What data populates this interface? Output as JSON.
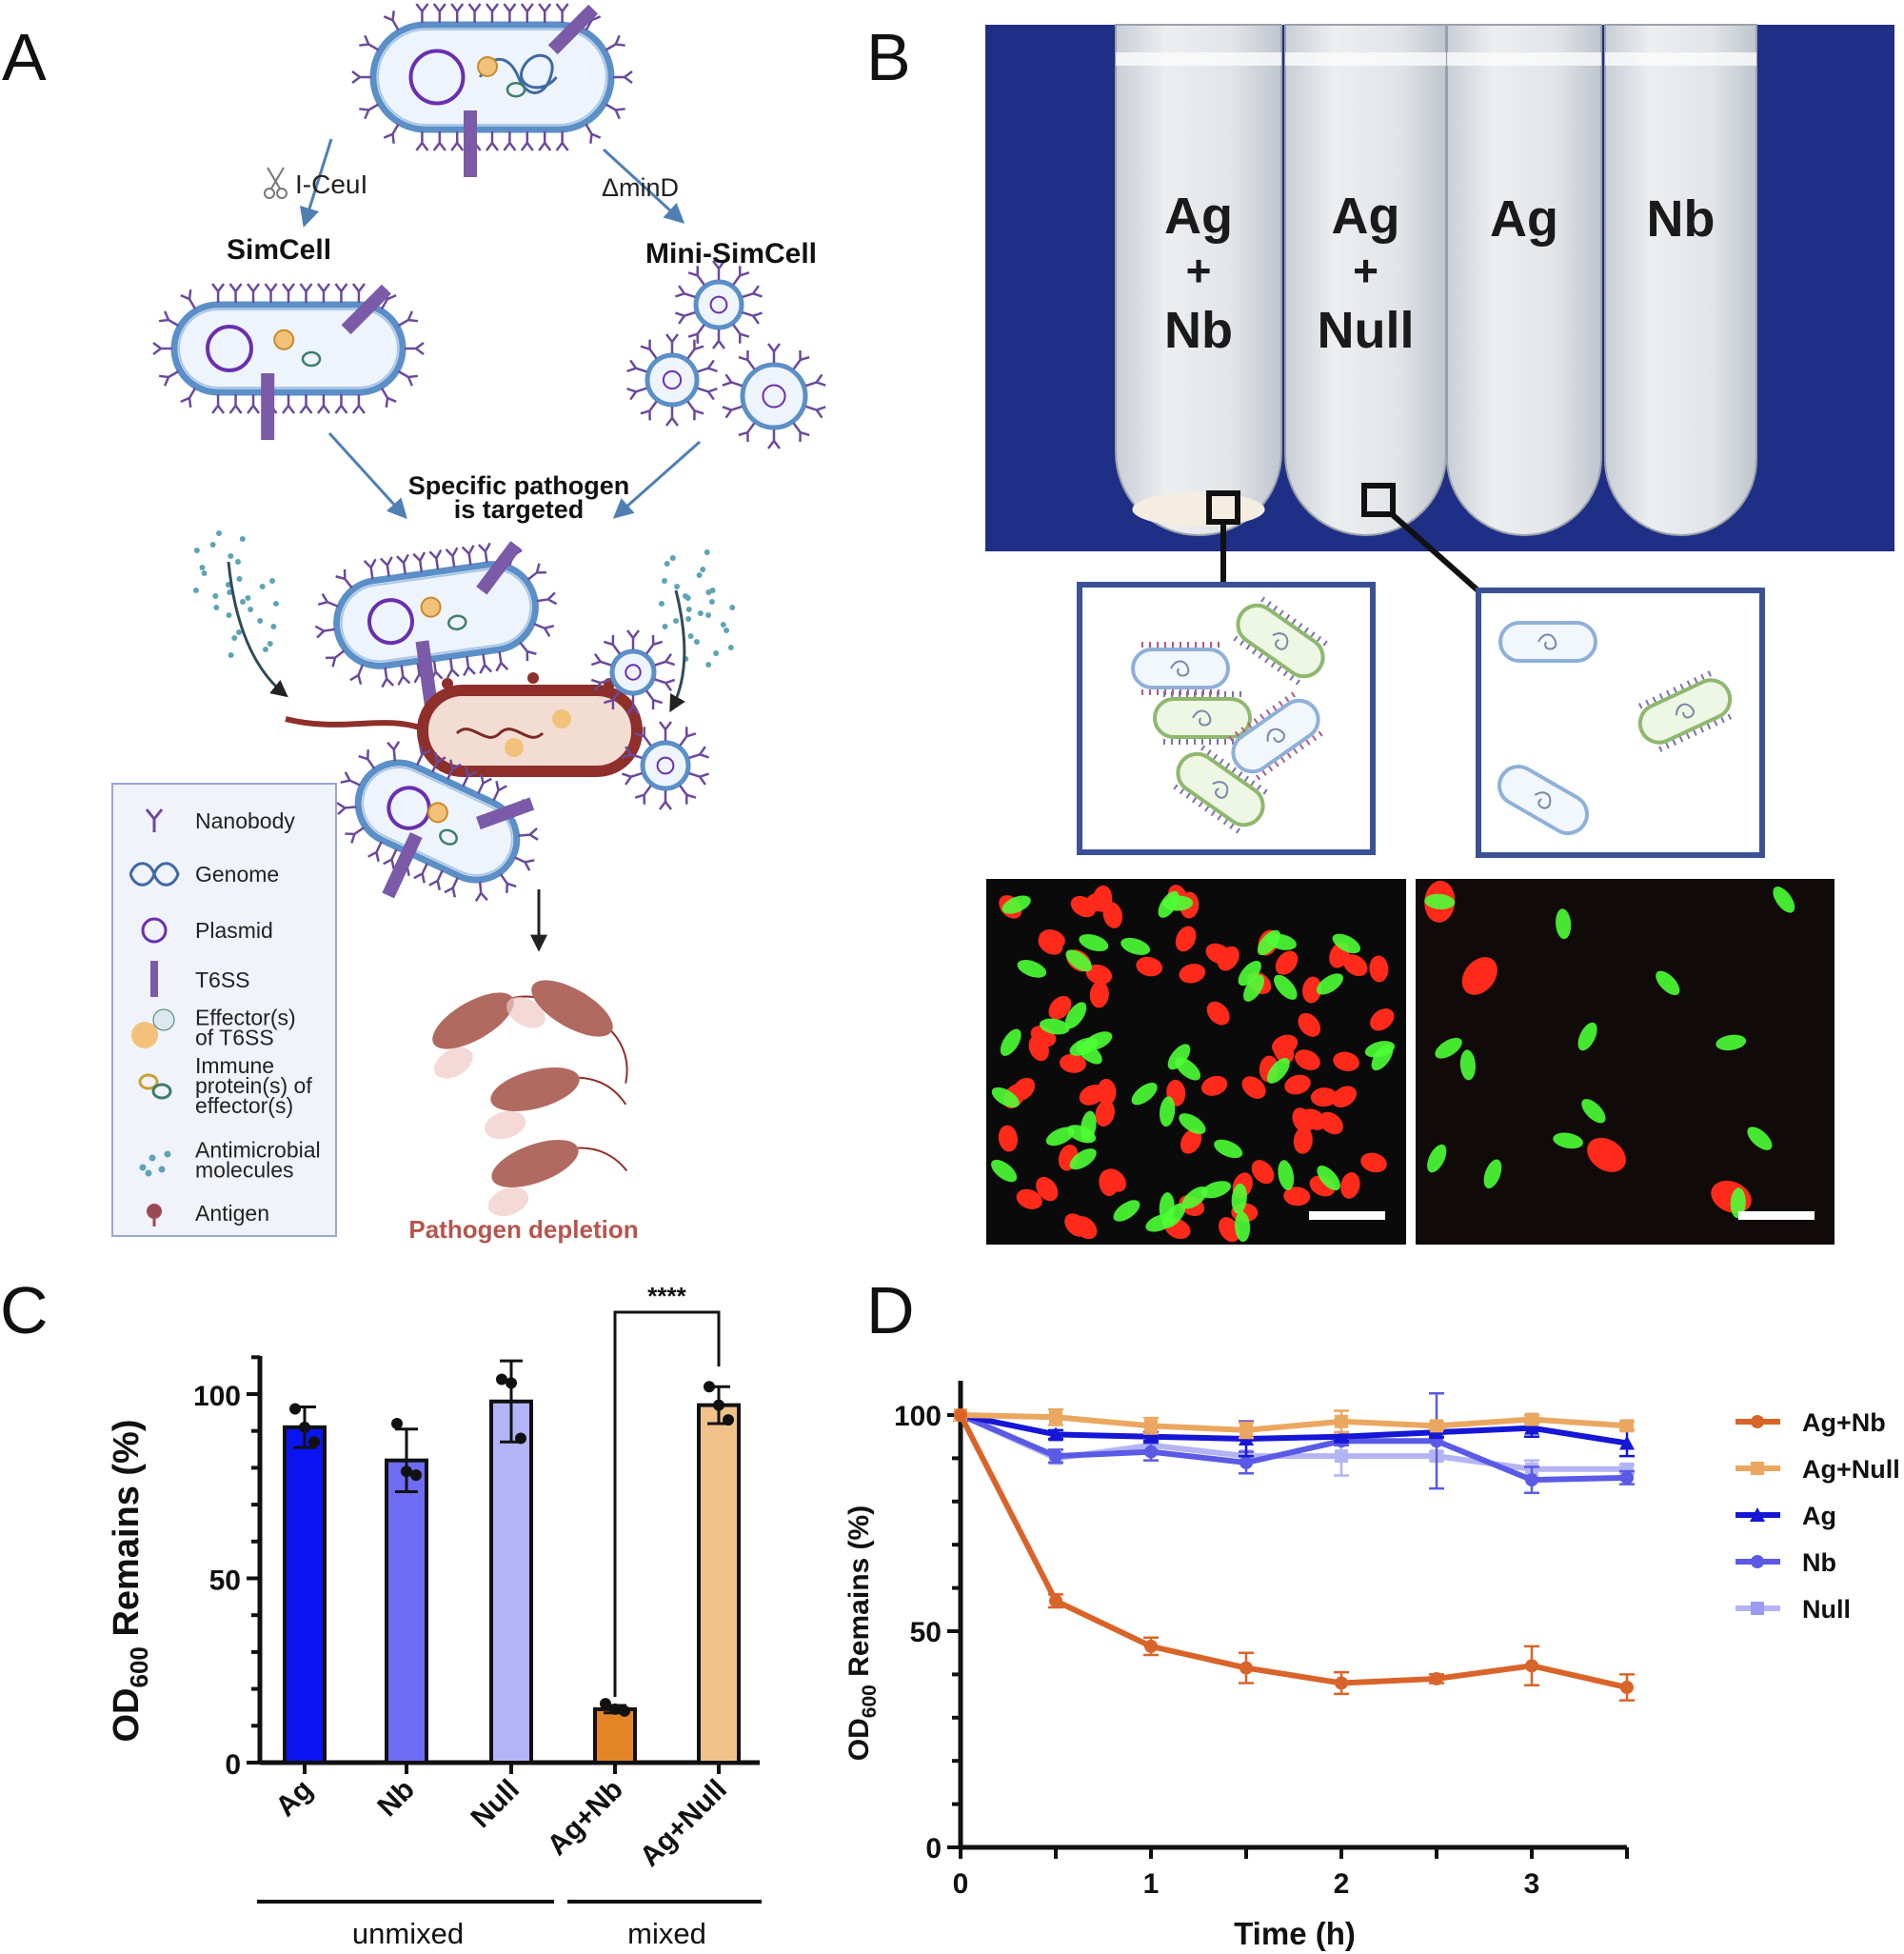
{
  "panels": {
    "a": "A",
    "b": "B",
    "c": "C",
    "d": "D"
  },
  "panel_a": {
    "arrow_left_label": "I-CeuI",
    "arrow_right_label": "ΔminD",
    "simcell_title": "SimCell",
    "minisimcell_title": "Mini-SimCell",
    "targeted_line1": "Specific pathogen",
    "targeted_line2": "is targeted",
    "depletion": "Pathogen depletion",
    "legend": [
      {
        "icon": "nanobody-icon",
        "lines": [
          "Nanobody"
        ]
      },
      {
        "icon": "genome-icon",
        "lines": [
          "Genome"
        ]
      },
      {
        "icon": "plasmid-icon",
        "lines": [
          "Plasmid"
        ]
      },
      {
        "icon": "t6ss-icon",
        "lines": [
          "T6SS"
        ]
      },
      {
        "icon": "effector-icon",
        "lines": [
          "Effector(s)",
          "of T6SS"
        ]
      },
      {
        "icon": "immune-protein-icon",
        "lines": [
          "Immune",
          "protein(s) of",
          "effector(s)"
        ]
      },
      {
        "icon": "antimicrobial-icon",
        "lines": [
          "Antimicrobial",
          "molecules"
        ]
      },
      {
        "icon": "antigen-icon",
        "lines": [
          "Antigen"
        ]
      }
    ],
    "colors": {
      "membrane": "#5b8fc7",
      "nanobody": "#6b4a9a",
      "pathogen": "#8e2f2b",
      "depletion": "#b5554e"
    }
  },
  "panel_b": {
    "tubes": [
      {
        "lines": [
          "Ag",
          "+",
          "Nb"
        ]
      },
      {
        "lines": [
          "Ag",
          "+",
          "Null"
        ]
      },
      {
        "lines": [
          "Ag"
        ]
      },
      {
        "lines": [
          "Nb"
        ]
      }
    ],
    "colors": {
      "background": "#1f2f86",
      "tube": "#dfe2e6",
      "inset_border": "#3a5295"
    }
  },
  "chart_data": [
    {
      "id": "C",
      "type": "bar",
      "ylabel": "OD600 Remains (%)",
      "ylabel_main": "OD",
      "ylabel_sub": "600",
      "ylabel_rest": " Remains (%)",
      "ylim": [
        0,
        110
      ],
      "yticks": [
        0,
        50,
        100
      ],
      "categories": [
        "Ag",
        "Nb",
        "Null",
        "Ag+Nb",
        "Ag+Null"
      ],
      "values": [
        91,
        82,
        98,
        14.5,
        97
      ],
      "errors": [
        5.5,
        8.5,
        11,
        1,
        5
      ],
      "points": [
        [
          96,
          91,
          87
        ],
        [
          92,
          79,
          78
        ],
        [
          104,
          103,
          88
        ],
        [
          16,
          14.5,
          14
        ],
        [
          102,
          97,
          93
        ]
      ],
      "colors": [
        "#0a14f0",
        "#6c6cf5",
        "#b3b3f7",
        "#e38427",
        "#f0c28a"
      ],
      "groups": [
        {
          "label": "unmixed",
          "from": 0,
          "to": 2
        },
        {
          "label": "mixed",
          "from": 3,
          "to": 4
        }
      ],
      "significance": {
        "between": [
          3,
          4
        ],
        "label": "****"
      }
    },
    {
      "id": "D",
      "type": "line",
      "xlabel": "Time (h)",
      "ylabel_main": "OD",
      "ylabel_sub": "600",
      "ylabel_rest": " Remains (%)",
      "xlim": [
        0,
        3.5
      ],
      "ylim": [
        0,
        108
      ],
      "xticks": [
        0,
        1,
        2,
        3
      ],
      "yticks": [
        0,
        50,
        100
      ],
      "x": [
        0,
        0.5,
        1,
        1.5,
        2,
        2.5,
        3,
        3.5
      ],
      "series": [
        {
          "name": "Ag+Nb",
          "color": "#d9642a",
          "marker": "circle",
          "values": [
            100,
            57,
            46.5,
            41.5,
            38,
            39,
            42,
            37
          ],
          "errors": [
            0,
            1.5,
            2,
            3.5,
            2.5,
            1,
            4.5,
            3
          ]
        },
        {
          "name": "Ag+Null",
          "color": "#eba760",
          "marker": "square",
          "values": [
            100,
            99.5,
            97.5,
            96.5,
            98.5,
            97.5,
            99,
            97.5
          ],
          "errors": [
            0,
            1.8,
            1.8,
            1.8,
            2.5,
            0.8,
            1,
            1
          ]
        },
        {
          "name": "Ag",
          "color": "#1616d6",
          "marker": "triangle",
          "values": [
            100,
            95.5,
            95,
            94.5,
            95,
            96,
            97,
            93.5
          ],
          "errors": [
            0,
            1,
            1,
            4,
            1,
            1,
            2,
            3
          ]
        },
        {
          "name": "Nb",
          "color": "#5a5ae6",
          "marker": "circle",
          "values": [
            100,
            90.5,
            91.5,
            89,
            94,
            94,
            85,
            85.5
          ],
          "errors": [
            0,
            1.5,
            2,
            2.5,
            1,
            11,
            3,
            1.5
          ]
        },
        {
          "name": "Null",
          "color": "#9b9bf0",
          "marker": "square",
          "values": [
            100,
            90,
            93,
            90.5,
            90.5,
            90.5,
            87.5,
            87.5
          ],
          "errors": [
            0,
            1,
            1,
            1,
            4.5,
            1,
            2,
            1
          ]
        }
      ],
      "legend_position": "right"
    }
  ]
}
